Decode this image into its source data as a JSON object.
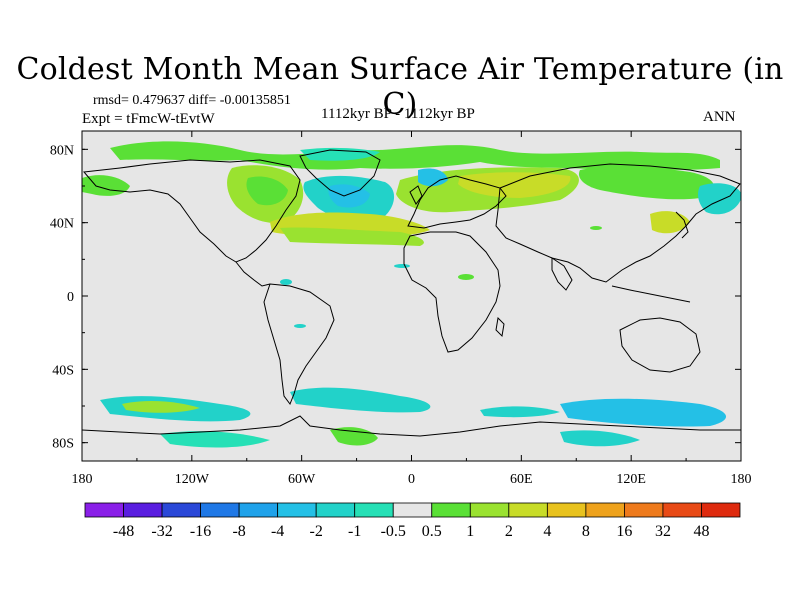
{
  "title": "Coldest Month Mean Surface Air Temperature (in C)",
  "stats": "rmsd= 0.479637 diff= -0.00135851",
  "experiment": "Expt = tFmcW-tEvtW",
  "period": "1112kyr BP - 1112kyr BP",
  "season": "ANN",
  "map": {
    "projection": "cylindrical equidistant",
    "lon_range": [
      -180,
      180
    ],
    "lat_range": [
      -90,
      90
    ],
    "x_ticks": [
      "180",
      "120W",
      "60W",
      "0",
      "60E",
      "120E",
      "180"
    ],
    "y_ticks": [
      "80N",
      "40N",
      "0",
      "40S",
      "80S"
    ],
    "background_color": "#e6e6e6"
  },
  "colorbar": {
    "labels": [
      "-48",
      "-32",
      "-16",
      "-8",
      "-4",
      "-2",
      "-1",
      "-0.5",
      "0.5",
      "1",
      "2",
      "4",
      "8",
      "16",
      "32",
      "48"
    ],
    "colors": [
      "#8a1fe8",
      "#5a1ee0",
      "#2a48d8",
      "#1f78e6",
      "#1fa2ea",
      "#24c0e6",
      "#22d2c9",
      "#26e0b6",
      "#e6e6e6",
      "#5ae036",
      "#9ae230",
      "#c8dc28",
      "#e8c21e",
      "#eea21c",
      "#ee7a1c",
      "#e84a16",
      "#de2a0e"
    ]
  }
}
